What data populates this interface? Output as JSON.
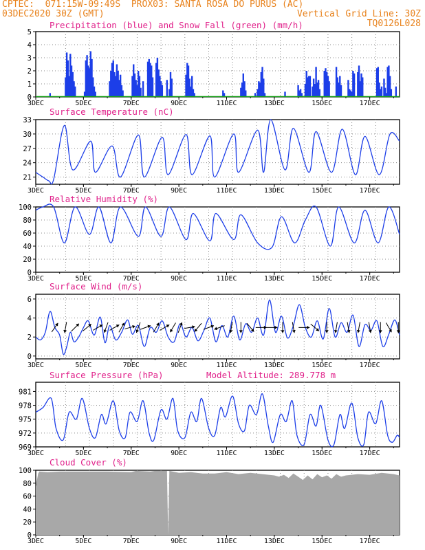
{
  "header": {
    "line1_left": "CPTEC:  071:15W-09:49S  PROX03: SANTA ROSA DO PURUS (AC)",
    "line2_left": "03DEC2020 30Z (GMT)",
    "line2_right": "Vertical Grid Line: 30Z",
    "line3_right": "TQ0126L028"
  },
  "colors": {
    "header": "#e8821c",
    "title": "#e0208a",
    "series": "#1c3ee8",
    "snow": "#18a018",
    "cloud": "#a8a8a8"
  },
  "chart_data": [
    {
      "type": "bar",
      "title": "Precipitation (blue) and Snow Fall (green) (mm/h)",
      "ylim": [
        0,
        5
      ],
      "yticks": [
        0,
        1,
        2,
        3,
        4,
        5
      ],
      "x_ticks": [
        "3DEC",
        "5DEC",
        "7DEC",
        "9DEC",
        "11DEC",
        "13DEC",
        "15DEC",
        "17DEC"
      ],
      "x_day_range": [
        3.0,
        18.25
      ],
      "series": [
        {
          "name": "Precipitation",
          "x": [
            3.6,
            4.25,
            4.3,
            4.35,
            4.4,
            4.45,
            4.5,
            4.55,
            4.6,
            4.65,
            5.05,
            5.1,
            5.15,
            5.2,
            5.25,
            5.3,
            5.35,
            5.4,
            5.45,
            5.5,
            6.1,
            6.15,
            6.2,
            6.25,
            6.3,
            6.35,
            6.4,
            6.45,
            6.5,
            6.55,
            6.6,
            6.65,
            7.05,
            7.1,
            7.15,
            7.2,
            7.25,
            7.3,
            7.35,
            7.4,
            7.5,
            7.7,
            7.75,
            7.8,
            7.85,
            7.9,
            8.05,
            8.1,
            8.15,
            8.2,
            8.25,
            8.3,
            8.5,
            8.6,
            8.65,
            8.7,
            9.3,
            9.35,
            9.4,
            9.45,
            9.5,
            9.55,
            9.6,
            9.65,
            10.85,
            10.9,
            11.6,
            11.65,
            11.7,
            11.75,
            11.8,
            12.2,
            12.3,
            12.35,
            12.4,
            12.45,
            12.5,
            12.55,
            12.6,
            13.45,
            14.0,
            14.05,
            14.1,
            14.15,
            14.3,
            14.35,
            14.4,
            14.45,
            14.5,
            14.6,
            14.65,
            14.7,
            14.75,
            14.8,
            14.85,
            14.9,
            15.1,
            15.15,
            15.2,
            15.25,
            15.3,
            15.6,
            15.65,
            15.7,
            15.75,
            15.8,
            16.1,
            16.15,
            16.2,
            16.25,
            16.3,
            16.35,
            16.5,
            16.55,
            16.6,
            16.65,
            16.7,
            17.3,
            17.35,
            17.4,
            17.45,
            17.5,
            17.6,
            17.65,
            17.7,
            17.75,
            17.8,
            17.85,
            17.9,
            18.1
          ],
          "values": [
            0.3,
            1.5,
            3.4,
            2.8,
            1.6,
            3.3,
            2.4,
            1.9,
            1.2,
            0.8,
            0.4,
            2.8,
            3.2,
            2.4,
            2.2,
            3.5,
            2.9,
            1.5,
            0.8,
            0.4,
            1.2,
            2.0,
            2.6,
            2.8,
            1.9,
            1.6,
            2.5,
            2.0,
            1.3,
            1.7,
            0.9,
            0.5,
            1.6,
            2.5,
            1.8,
            1.3,
            0.9,
            2.0,
            1.6,
            0.7,
            1.2,
            2.7,
            2.9,
            2.6,
            2.4,
            1.5,
            2.6,
            3.0,
            2.1,
            1.6,
            1.2,
            0.9,
            1.3,
            0.6,
            1.9,
            1.4,
            1.7,
            2.6,
            2.4,
            1.4,
            0.8,
            1.6,
            0.6,
            0.3,
            0.5,
            0.3,
            0.7,
            1.1,
            1.8,
            1.2,
            0.5,
            0.3,
            0.6,
            1.2,
            1.1,
            1.9,
            2.3,
            1.4,
            0.3,
            0.4,
            0.9,
            0.5,
            0.6,
            0.3,
            1.0,
            2.0,
            1.5,
            1.6,
            1.6,
            0.8,
            1.4,
            1.0,
            2.3,
            1.1,
            1.3,
            0.6,
            2.0,
            2.2,
            1.9,
            1.6,
            1.2,
            2.3,
            1.5,
            1.1,
            1.6,
            0.9,
            1.3,
            0.6,
            0.5,
            0.4,
            2.0,
            1.8,
            1.9,
            2.4,
            1.2,
            1.8,
            1.5,
            2.2,
            2.3,
            1.1,
            0.6,
            0.8,
            1.4,
            0.7,
            0.3,
            2.3,
            2.4,
            1.6,
            0.6,
            0.8
          ]
        },
        {
          "name": "Snow Fall",
          "x": [
            3.0,
            18.25
          ],
          "values": [
            0,
            0
          ]
        }
      ]
    },
    {
      "type": "line",
      "title": "Surface Temperature (nC)",
      "ylim": [
        19.5,
        33
      ],
      "yticks": [
        21,
        24,
        27,
        30,
        33
      ],
      "x_ticks": [
        "3DEC",
        "5DEC",
        "7DEC",
        "9DEC",
        "11DEC",
        "13DEC",
        "15DEC",
        "17DEC"
      ],
      "x_day_range": [
        3.0,
        18.25
      ],
      "series": [
        {
          "name": "Temperature",
          "x": [
            3.0,
            3.3,
            3.55,
            3.75,
            4.2,
            4.55,
            5.3,
            5.5,
            6.2,
            6.55,
            7.3,
            7.55,
            8.3,
            8.55,
            9.3,
            9.55,
            10.3,
            10.5,
            11.3,
            11.5,
            12.3,
            12.55,
            12.85,
            13.45,
            13.8,
            14.45,
            14.75,
            15.4,
            15.85,
            16.4,
            16.8,
            17.4,
            17.85,
            18.25
          ],
          "values": [
            22.0,
            21.0,
            20.2,
            20.5,
            31.8,
            22.5,
            28.5,
            22.0,
            27.5,
            21.0,
            29.8,
            21.0,
            29.3,
            21.5,
            29.9,
            21.5,
            29.6,
            21.0,
            30.0,
            22.0,
            30.8,
            22.0,
            33.0,
            22.5,
            31.2,
            22.0,
            30.5,
            22.0,
            31.0,
            21.5,
            29.5,
            21.5,
            30.0,
            28.5
          ]
        }
      ]
    },
    {
      "type": "line",
      "title": "Relative Humidity (%)",
      "ylim": [
        0,
        100
      ],
      "yticks": [
        0,
        20,
        40,
        60,
        80,
        100
      ],
      "x_ticks": [
        "3DEC",
        "5DEC",
        "7DEC",
        "9DEC",
        "11DEC",
        "13DEC",
        "15DEC",
        "17DEC"
      ],
      "x_day_range": [
        3.0,
        18.25
      ],
      "series": [
        {
          "name": "Relative Humidity",
          "x": [
            3.0,
            3.3,
            3.75,
            4.2,
            4.65,
            5.25,
            5.65,
            6.15,
            6.55,
            7.3,
            7.6,
            8.25,
            8.6,
            9.3,
            9.6,
            10.3,
            10.55,
            11.3,
            11.6,
            12.3,
            12.9,
            13.3,
            13.85,
            14.3,
            14.75,
            15.35,
            15.7,
            16.35,
            16.8,
            17.35,
            17.8,
            18.25
          ],
          "values": [
            95,
            100,
            100,
            45,
            100,
            58,
            100,
            45,
            100,
            55,
            100,
            55,
            100,
            50,
            90,
            48,
            90,
            50,
            88,
            45,
            38,
            85,
            45,
            80,
            100,
            40,
            100,
            45,
            95,
            45,
            100,
            58
          ]
        }
      ]
    },
    {
      "type": "line",
      "title": "Surface Wind (m/s)",
      "ylim": [
        -0.3,
        6.5
      ],
      "yticks": [
        0,
        2,
        4,
        6
      ],
      "x_ticks": [
        "3DEC",
        "5DEC",
        "7DEC",
        "9DEC",
        "11DEC",
        "13DEC",
        "15DEC",
        "17DEC"
      ],
      "x_day_range": [
        3.0,
        18.25
      ],
      "series": [
        {
          "name": "Wind Speed",
          "x": [
            3.0,
            3.2,
            3.4,
            3.6,
            3.8,
            4.0,
            4.15,
            4.3,
            4.45,
            4.6,
            4.8,
            5.0,
            5.2,
            5.45,
            5.7,
            5.9,
            6.1,
            6.35,
            6.6,
            6.85,
            7.05,
            7.3,
            7.55,
            7.8,
            8.05,
            8.3,
            8.55,
            8.8,
            9.05,
            9.3,
            9.55,
            9.8,
            10.05,
            10.3,
            10.55,
            10.8,
            11.05,
            11.3,
            11.55,
            11.8,
            12.05,
            12.3,
            12.55,
            12.8,
            13.05,
            13.3,
            13.55,
            13.8,
            14.05,
            14.3,
            14.55,
            14.8,
            15.05,
            15.3,
            15.55,
            15.8,
            16.05,
            16.3,
            16.55,
            16.8,
            17.05,
            17.3,
            17.55,
            17.8,
            18.05,
            18.25
          ],
          "values": [
            2.0,
            1.7,
            2.5,
            4.7,
            3.0,
            2.2,
            0.2,
            1.0,
            2.5,
            1.5,
            2.0,
            3.0,
            3.7,
            2.2,
            4.1,
            1.4,
            3.2,
            1.7,
            2.5,
            3.8,
            2.3,
            3.2,
            1.0,
            3.0,
            2.5,
            3.7,
            2.0,
            1.5,
            3.4,
            2.0,
            3.0,
            1.6,
            2.7,
            4.0,
            1.5,
            3.2,
            2.0,
            4.2,
            1.7,
            3.4,
            2.5,
            4.0,
            2.2,
            5.9,
            2.5,
            4.2,
            1.9,
            3.2,
            5.4,
            3.0,
            2.0,
            3.7,
            1.8,
            5.0,
            2.0,
            3.5,
            2.5,
            4.3,
            1.0,
            3.3,
            2.7,
            3.7,
            1.0,
            2.3,
            3.8,
            2.2
          ]
        }
      ],
      "wind_arrows": {
        "x": [
          3.8,
          4.25,
          4.65,
          5.15,
          5.6,
          5.95,
          6.3,
          6.6,
          6.95,
          7.3,
          7.6,
          8.05,
          8.4,
          8.75,
          9.05,
          9.45,
          9.8,
          10.25,
          10.7,
          11.2,
          11.6,
          12.0,
          12.45,
          12.9,
          13.35,
          13.8,
          14.25,
          14.7,
          15.2,
          15.6,
          16.1,
          16.55,
          17.0,
          17.45,
          17.8,
          18.2
        ],
        "dir_deg": [
          35,
          190,
          45,
          50,
          60,
          200,
          60,
          30,
          75,
          200,
          70,
          30,
          60,
          210,
          20,
          80,
          220,
          70,
          250,
          190,
          180,
          140,
          90,
          90,
          180,
          170,
          90,
          130,
          180,
          190,
          170,
          190,
          170,
          180,
          150,
          180
        ]
      }
    },
    {
      "type": "line",
      "title": "Surface Pressure (hPa)",
      "subtitle": "Model Altitude: 289.778 m",
      "ylim": [
        969,
        983
      ],
      "yticks": [
        969,
        972,
        975,
        978,
        981
      ],
      "x_ticks": [
        "3DEC",
        "5DEC",
        "7DEC",
        "9DEC",
        "11DEC",
        "13DEC",
        "15DEC",
        "17DEC"
      ],
      "x_day_range": [
        3.0,
        18.25
      ],
      "series": [
        {
          "name": "Pressure",
          "x": [
            3.0,
            3.3,
            3.65,
            3.85,
            4.15,
            4.4,
            4.7,
            4.95,
            5.25,
            5.5,
            5.75,
            5.95,
            6.25,
            6.5,
            6.75,
            6.95,
            7.25,
            7.5,
            7.75,
            7.95,
            8.25,
            8.5,
            8.75,
            8.95,
            9.25,
            9.5,
            9.75,
            9.95,
            10.25,
            10.5,
            10.75,
            10.95,
            11.25,
            11.5,
            11.75,
            11.95,
            12.25,
            12.5,
            12.75,
            12.95,
            13.25,
            13.5,
            13.75,
            13.95,
            14.25,
            14.5,
            14.75,
            14.95,
            15.25,
            15.5,
            15.75,
            15.95,
            16.25,
            16.5,
            16.75,
            16.95,
            17.25,
            17.5,
            17.75,
            17.95,
            18.15,
            18.25
          ],
          "values": [
            976.5,
            977.5,
            979.5,
            973.0,
            970.5,
            976.5,
            975.0,
            979.5,
            973.0,
            971.0,
            976.0,
            974.0,
            979.0,
            972.5,
            971.0,
            976.5,
            974.5,
            979.0,
            972.0,
            970.5,
            977.0,
            975.0,
            979.5,
            972.5,
            971.0,
            976.5,
            974.5,
            979.5,
            973.0,
            971.5,
            977.5,
            975.5,
            980.0,
            974.0,
            972.5,
            978.0,
            976.0,
            980.5,
            973.5,
            970.0,
            976.0,
            974.5,
            979.0,
            971.5,
            969.5,
            976.0,
            973.5,
            978.0,
            970.5,
            969.5,
            976.0,
            973.0,
            978.5,
            971.0,
            969.5,
            976.5,
            974.0,
            979.0,
            971.5,
            970.0,
            971.5,
            971.0
          ]
        }
      ]
    },
    {
      "type": "area",
      "title": "Cloud Cover (%)",
      "ylim": [
        0,
        100
      ],
      "yticks": [
        0,
        20,
        40,
        60,
        80,
        100
      ],
      "x_ticks": [
        "3DEC",
        "5DEC",
        "7DEC",
        "9DEC",
        "11DEC",
        "13DEC",
        "15DEC",
        "17DEC"
      ],
      "x_day_range": [
        3.0,
        18.25
      ],
      "series": [
        {
          "name": "Cloud Cover",
          "x": [
            3.0,
            3.1,
            3.15,
            3.5,
            4.0,
            5.0,
            6.0,
            7.0,
            7.2,
            7.8,
            8.0,
            8.5,
            8.55,
            8.6,
            9.0,
            9.5,
            10.0,
            10.5,
            11.0,
            11.5,
            12.0,
            12.5,
            13.0,
            13.2,
            13.4,
            13.6,
            13.8,
            14.0,
            14.2,
            14.4,
            14.6,
            14.8,
            15.0,
            15.2,
            15.4,
            15.6,
            15.8,
            16.0,
            16.5,
            17.0,
            17.5,
            18.0,
            18.25
          ],
          "values": [
            75,
            95,
            98,
            97,
            98,
            98,
            98,
            97,
            99,
            98,
            99,
            99,
            0,
            99,
            96,
            97,
            95,
            95,
            97,
            94,
            96,
            94,
            92,
            90,
            93,
            88,
            95,
            90,
            85,
            92,
            86,
            94,
            89,
            92,
            87,
            94,
            90,
            92,
            94,
            93,
            96,
            94,
            92
          ]
        }
      ]
    }
  ]
}
